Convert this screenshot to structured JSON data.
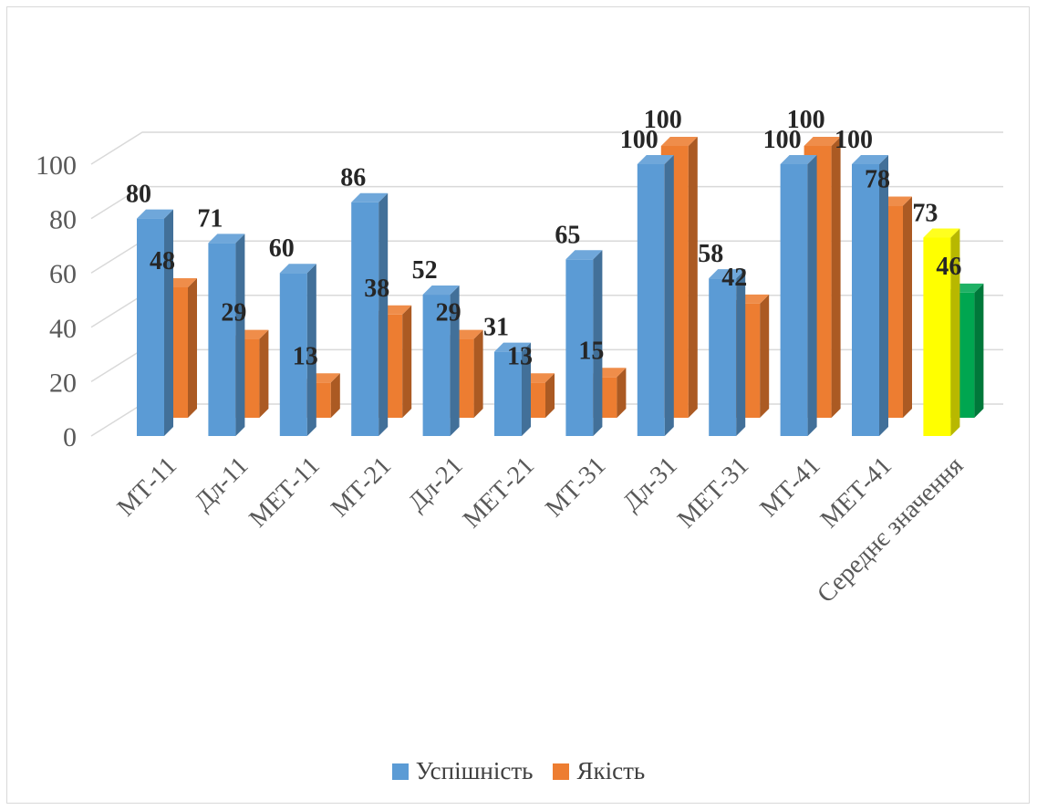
{
  "chart_data": {
    "type": "bar",
    "title": "",
    "xlabel": "",
    "ylabel": "",
    "ylim": [
      0,
      100
    ],
    "yticks": [
      0,
      20,
      40,
      60,
      80,
      100
    ],
    "grid": true,
    "legend_position": "bottom",
    "style": "3d-clustered-column",
    "categories": [
      "МТ-11",
      "Дл-11",
      "МЕТ-11",
      "МТ-21",
      "Дл-21",
      "МЕТ-21",
      "МТ-31",
      "Дл-31",
      "МЕТ-31",
      "МТ-41",
      "МЕТ-41",
      "Середнє значення"
    ],
    "series": [
      {
        "name": "Успішність",
        "color": "#5b9bd5",
        "values": [
          80,
          71,
          60,
          86,
          52,
          31,
          65,
          100,
          58,
          100,
          100,
          73
        ],
        "highlight": {
          "index": 11,
          "color": "#ffff00"
        }
      },
      {
        "name": "Якість",
        "color": "#ed7d31",
        "values": [
          48,
          29,
          13,
          38,
          29,
          13,
          15,
          100,
          42,
          100,
          78,
          46
        ],
        "highlight": {
          "index": 11,
          "color": "#00a650"
        }
      }
    ]
  }
}
